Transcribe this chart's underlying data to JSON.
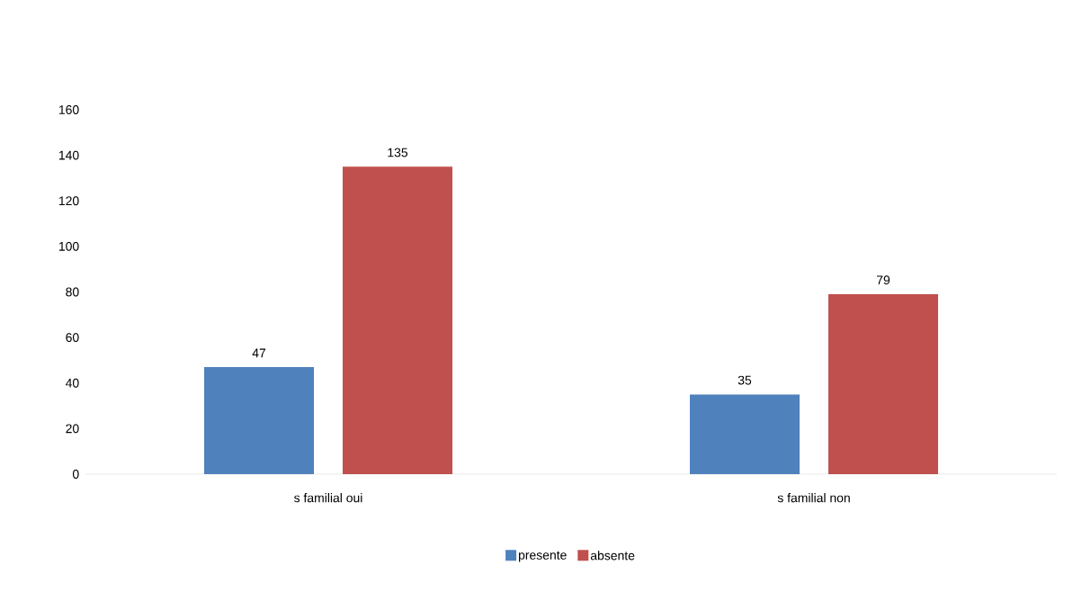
{
  "chart_data": {
    "type": "bar",
    "categories": [
      "s familial oui",
      "s familial non"
    ],
    "series": [
      {
        "name": "presente",
        "color": "#4f81bd",
        "values": [
          47,
          35
        ]
      },
      {
        "name": "absente",
        "color": "#c0504d",
        "values": [
          135,
          79
        ]
      }
    ],
    "ylim": [
      0,
      160
    ],
    "yticks": [
      0,
      20,
      40,
      60,
      80,
      100,
      120,
      140,
      160
    ],
    "data_labels": true,
    "legend": "bottom"
  }
}
